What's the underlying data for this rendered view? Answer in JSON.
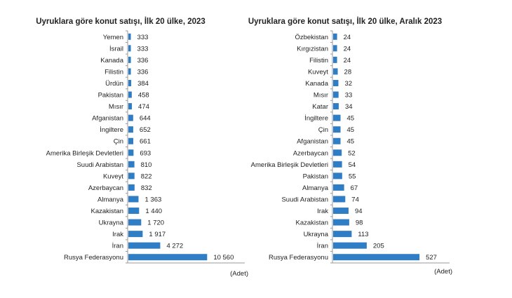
{
  "chart_data": [
    {
      "type": "bar",
      "orientation": "horizontal",
      "title": "Uyruklara göre konut satışı, İlk 20 ülke, 2023",
      "unit_label": "(Adet)",
      "categories": [
        "Yemen",
        "İsrail",
        "Kanada",
        "Filistin",
        "Ürdün",
        "Pakistan",
        "Mısır",
        "Afganistan",
        "İngiltere",
        "Çin",
        "Amerika Birleşik Devletleri",
        "Suudi Arabistan",
        "Kuveyt",
        "Azerbaycan",
        "Almanya",
        "Kazakistan",
        "Ukrayna",
        "Irak",
        "İran",
        "Rusya Federasyonu"
      ],
      "values": [
        333,
        333,
        336,
        336,
        384,
        458,
        474,
        644,
        652,
        661,
        693,
        810,
        822,
        832,
        1363,
        1440,
        1720,
        1917,
        4272,
        10560
      ],
      "value_labels": [
        "333",
        "333",
        "336",
        "336",
        "384",
        "458",
        "474",
        "644",
        "652",
        "661",
        "693",
        "810",
        "822",
        "832",
        "1 363",
        "1 440",
        "1 720",
        "1 917",
        "4 272",
        "10 560"
      ],
      "xlim": [
        0,
        15700
      ],
      "color": "#2e7dc5",
      "grid": false
    },
    {
      "type": "bar",
      "orientation": "horizontal",
      "title": "Uyruklara göre konut satışı, İlk 20 ülke, Aralık 2023",
      "unit_label": "(Adet)",
      "categories": [
        "Özbekistan",
        "Kırgızistan",
        "Filistin",
        "Kuveyt",
        "Kanada",
        "Mısır",
        "Katar",
        "İngiltere",
        "Çin",
        "Afganistan",
        "Azerbaycan",
        "Amerika Birleşik Devletleri",
        "Pakistan",
        "Almanya",
        "Suudi Arabistan",
        "Irak",
        "Kazakistan",
        "Ukrayna",
        "İran",
        "Rusya Federasyonu"
      ],
      "values": [
        24,
        24,
        24,
        28,
        32,
        33,
        34,
        45,
        45,
        45,
        52,
        54,
        55,
        67,
        74,
        94,
        98,
        113,
        205,
        527
      ],
      "value_labels": [
        "24",
        "24",
        "24",
        "28",
        "32",
        "33",
        "34",
        "45",
        "45",
        "45",
        "52",
        "54",
        "55",
        "67",
        "74",
        "94",
        "98",
        "113",
        "205",
        "527"
      ],
      "xlim": [
        0,
        715
      ],
      "color": "#2e7dc5",
      "grid": false
    }
  ]
}
